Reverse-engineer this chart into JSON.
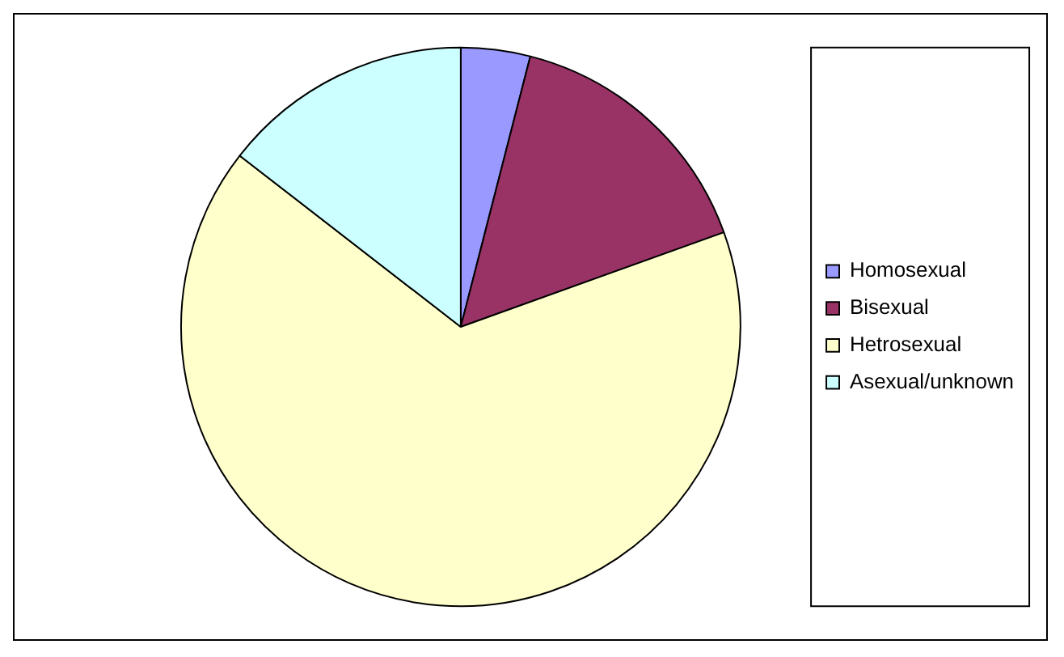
{
  "chart_data": {
    "type": "pie",
    "categories": [
      "Homosexual",
      "Bisexual",
      "Hetrosexual",
      "Asexual/unknown"
    ],
    "values": [
      4,
      15.5,
      66,
      14.5
    ],
    "colors": [
      "#9999ff",
      "#993366",
      "#ffffcc",
      "#ccffff"
    ],
    "legend": "right"
  }
}
